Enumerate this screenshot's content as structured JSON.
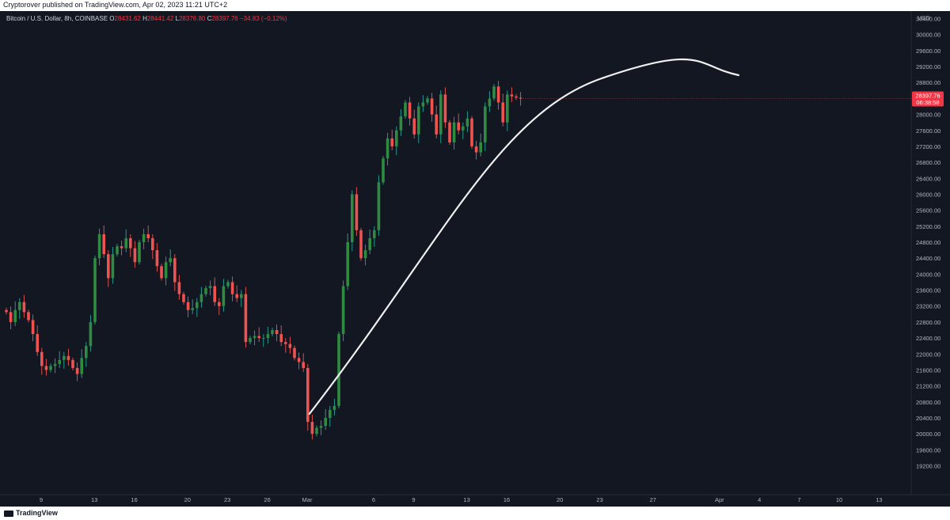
{
  "header": {
    "publisher": "Cryptorover published on TradingView.com, Apr 02, 2023 11:21 UTC+2"
  },
  "legend": {
    "symbol": "Bitcoin / U.S. Dollar, 8h, COINBASE",
    "o_label": "O",
    "o": "28431.62",
    "h_label": "H",
    "h": "28441.42",
    "l_label": "L",
    "l": "28376.80",
    "c_label": "C",
    "c": "28397.76",
    "change": "−34.83 (−0.12%)"
  },
  "price_tag": {
    "price": "28397.76",
    "countdown": "06:38:58"
  },
  "footer": {
    "brand": "TradingView"
  },
  "colors": {
    "up": "#26a69a",
    "up_body": "#2e8b3f",
    "down": "#ef5350",
    "bg": "#131722",
    "curve": "#ffffff"
  },
  "chart_data": {
    "type": "candlestick",
    "title": "",
    "currency": "USD",
    "y_ticks": [
      19200,
      19600,
      20000,
      20400,
      20800,
      21200,
      21600,
      22000,
      22400,
      22800,
      23200,
      23600,
      24000,
      24400,
      24800,
      25200,
      25600,
      26000,
      26400,
      26800,
      27200,
      27600,
      28000,
      28400,
      28800,
      29200,
      29600,
      30000,
      30400
    ],
    "x_labels": [
      {
        "label": "9",
        "day": 9
      },
      {
        "label": "13",
        "day": 13
      },
      {
        "label": "16",
        "day": 16
      },
      {
        "label": "20",
        "day": 20
      },
      {
        "label": "23",
        "day": 23
      },
      {
        "label": "26",
        "day": 26
      },
      {
        "label": "Mar",
        "day": 29
      },
      {
        "label": "6",
        "day": 34
      },
      {
        "label": "9",
        "day": 37
      },
      {
        "label": "13",
        "day": 41
      },
      {
        "label": "16",
        "day": 44
      },
      {
        "label": "20",
        "day": 48
      },
      {
        "label": "23",
        "day": 51
      },
      {
        "label": "27",
        "day": 55
      },
      {
        "label": "Apr",
        "day": 60
      },
      {
        "label": "4",
        "day": 63
      },
      {
        "label": "7",
        "day": 66
      },
      {
        "label": "10",
        "day": 69
      },
      {
        "label": "13",
        "day": 72
      }
    ],
    "annotation": "hand-drawn arc from the March 10 low curving up to above the late-March highs",
    "candles_close": [
      23050,
      22800,
      23100,
      23300,
      23050,
      22850,
      22500,
      22050,
      21700,
      21600,
      21700,
      21750,
      21850,
      21950,
      21850,
      21650,
      21500,
      21900,
      22200,
      22800,
      24400,
      25000,
      24500,
      23900,
      24500,
      24700,
      24650,
      24900,
      24650,
      24300,
      24800,
      25000,
      24900,
      24600,
      24200,
      23900,
      24300,
      24400,
      23800,
      23500,
      23300,
      23100,
      23150,
      23300,
      23500,
      23650,
      23700,
      23300,
      23200,
      23700,
      23800,
      23500,
      23400,
      23500,
      22300,
      22400,
      22450,
      22400,
      22400,
      22500,
      22600,
      22500,
      22300,
      22250,
      22150,
      21900,
      21800,
      21650,
      20300,
      20000,
      20150,
      20200,
      20400,
      20600,
      20700,
      22500,
      23700,
      24800,
      26000,
      25100,
      24400,
      24600,
      24900,
      25100,
      26300,
      26900,
      27400,
      27200,
      27600,
      27950,
      28300,
      27900,
      27500,
      28200,
      28300,
      28400,
      28000,
      27500,
      28500,
      27800,
      27300,
      27800,
      27600,
      27700,
      27900,
      27200,
      27050,
      27300,
      28200,
      28400,
      28700,
      28300,
      27800,
      28500,
      28450,
      28420,
      28398
    ]
  }
}
